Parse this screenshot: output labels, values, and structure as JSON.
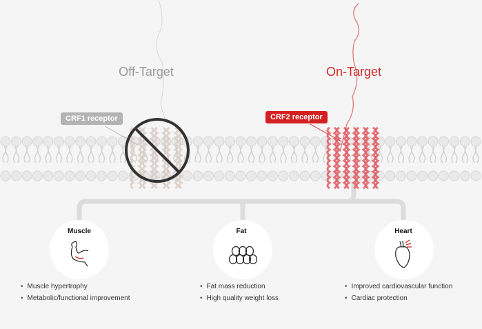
{
  "off_target": {
    "heading": "Off-Target",
    "receptor": "CRF1 receptor",
    "color": "#9a9a9a",
    "tag_color": "#b3b3b3"
  },
  "on_target": {
    "heading": "On-Target",
    "receptor": "CRF2 receptor",
    "color": "#d42a2a",
    "tag_color": "#d42020"
  },
  "effects": [
    {
      "title": "Muscle",
      "icon": "flexed-arm-icon",
      "bullets": [
        "Muscle hypertrophy",
        "Metabolic/functional improvement"
      ]
    },
    {
      "title": "Fat",
      "icon": "fat-cells-icon",
      "bullets": [
        "Fat mass reduction",
        "High quality weight loss"
      ]
    },
    {
      "title": "Heart",
      "icon": "heart-icon",
      "bullets": [
        "Improved cardiovascular function",
        "Cardiac protection"
      ]
    }
  ]
}
